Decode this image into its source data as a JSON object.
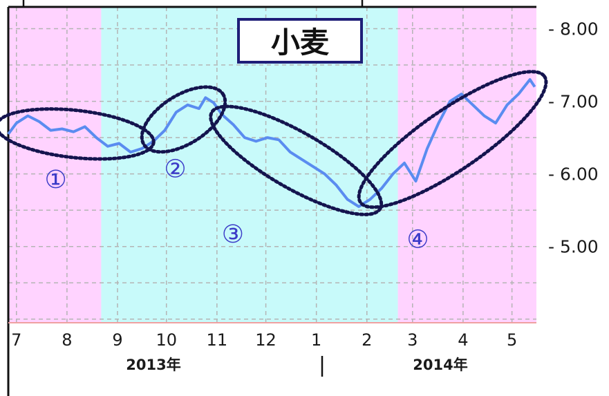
{
  "colors": {
    "pink_band": "#ffd3ff",
    "cyan_band": "#c8fafa",
    "line": "#5a8cf0",
    "ellipse": "#14144e",
    "annotation": "#3c3cc8",
    "title_border": "#1e1e78",
    "grid": "#b4b4b4"
  },
  "chart_data": {
    "type": "line",
    "title": "小麦",
    "series": [
      {
        "values": [
          [
            "2013-06-26",
            6.55
          ],
          [
            "2013-07-01",
            6.7
          ],
          [
            "2013-07-08",
            6.8
          ],
          [
            "2013-07-15",
            6.72
          ],
          [
            "2013-07-22",
            6.6
          ],
          [
            "2013-07-29",
            6.62
          ],
          [
            "2013-08-05",
            6.58
          ],
          [
            "2013-08-12",
            6.65
          ],
          [
            "2013-08-19",
            6.5
          ],
          [
            "2013-08-26",
            6.38
          ],
          [
            "2013-09-02",
            6.42
          ],
          [
            "2013-09-09",
            6.3
          ],
          [
            "2013-09-16",
            6.35
          ],
          [
            "2013-09-23",
            6.45
          ],
          [
            "2013-09-30",
            6.6
          ],
          [
            "2013-10-07",
            6.85
          ],
          [
            "2013-10-14",
            6.95
          ],
          [
            "2013-10-21",
            6.9
          ],
          [
            "2013-10-25",
            7.05
          ],
          [
            "2013-10-30",
            6.98
          ],
          [
            "2013-11-04",
            6.82
          ],
          [
            "2013-11-11",
            6.68
          ],
          [
            "2013-11-18",
            6.5
          ],
          [
            "2013-11-25",
            6.45
          ],
          [
            "2013-12-02",
            6.5
          ],
          [
            "2013-12-09",
            6.47
          ],
          [
            "2013-12-16",
            6.3
          ],
          [
            "2013-12-23",
            6.2
          ],
          [
            "2013-12-30",
            6.1
          ],
          [
            "2014-01-06",
            6.0
          ],
          [
            "2014-01-13",
            5.85
          ],
          [
            "2014-01-20",
            5.65
          ],
          [
            "2014-01-27",
            5.55
          ],
          [
            "2014-02-03",
            5.65
          ],
          [
            "2014-02-10",
            5.8
          ],
          [
            "2014-02-17",
            6.0
          ],
          [
            "2014-02-24",
            6.15
          ],
          [
            "2014-03-03",
            5.9
          ],
          [
            "2014-03-10",
            6.35
          ],
          [
            "2014-03-17",
            6.7
          ],
          [
            "2014-03-24",
            7.0
          ],
          [
            "2014-03-31",
            7.1
          ],
          [
            "2014-04-07",
            6.95
          ],
          [
            "2014-04-14",
            6.8
          ],
          [
            "2014-04-21",
            6.7
          ],
          [
            "2014-04-28",
            6.95
          ],
          [
            "2014-05-05",
            7.1
          ],
          [
            "2014-05-12",
            7.3
          ],
          [
            "2014-05-15",
            7.2
          ]
        ]
      }
    ],
    "x_ticks": [
      "7",
      "8",
      "9",
      "10",
      "11",
      "12",
      "1",
      "2",
      "3",
      "4",
      "5"
    ],
    "x_years": [
      "2013年",
      "2014年"
    ],
    "y_ticks": [
      "- 8.00",
      "- 7.00",
      "- 6.00",
      "- 5.00"
    ],
    "ylim": [
      3.95,
      8.3
    ],
    "xlim": [
      "2013-06-26",
      "2014-05-16"
    ],
    "grid": true,
    "background_bands": [
      {
        "from": "2013-06-26",
        "to": "2013-08-22",
        "color": "pink"
      },
      {
        "from": "2013-08-22",
        "to": "2014-02-20",
        "color": "cyan"
      },
      {
        "from": "2014-02-20",
        "to": "2014-05-16",
        "color": "pink"
      }
    ],
    "annotations": [
      {
        "label": "①",
        "from": "2013-06-26",
        "to": "2013-09-20"
      },
      {
        "label": "②",
        "from": "2013-09-20",
        "to": "2013-10-31"
      },
      {
        "label": "③",
        "from": "2013-10-31",
        "to": "2014-02-03"
      },
      {
        "label": "④",
        "from": "2014-02-03",
        "to": "2014-05-15"
      }
    ]
  }
}
